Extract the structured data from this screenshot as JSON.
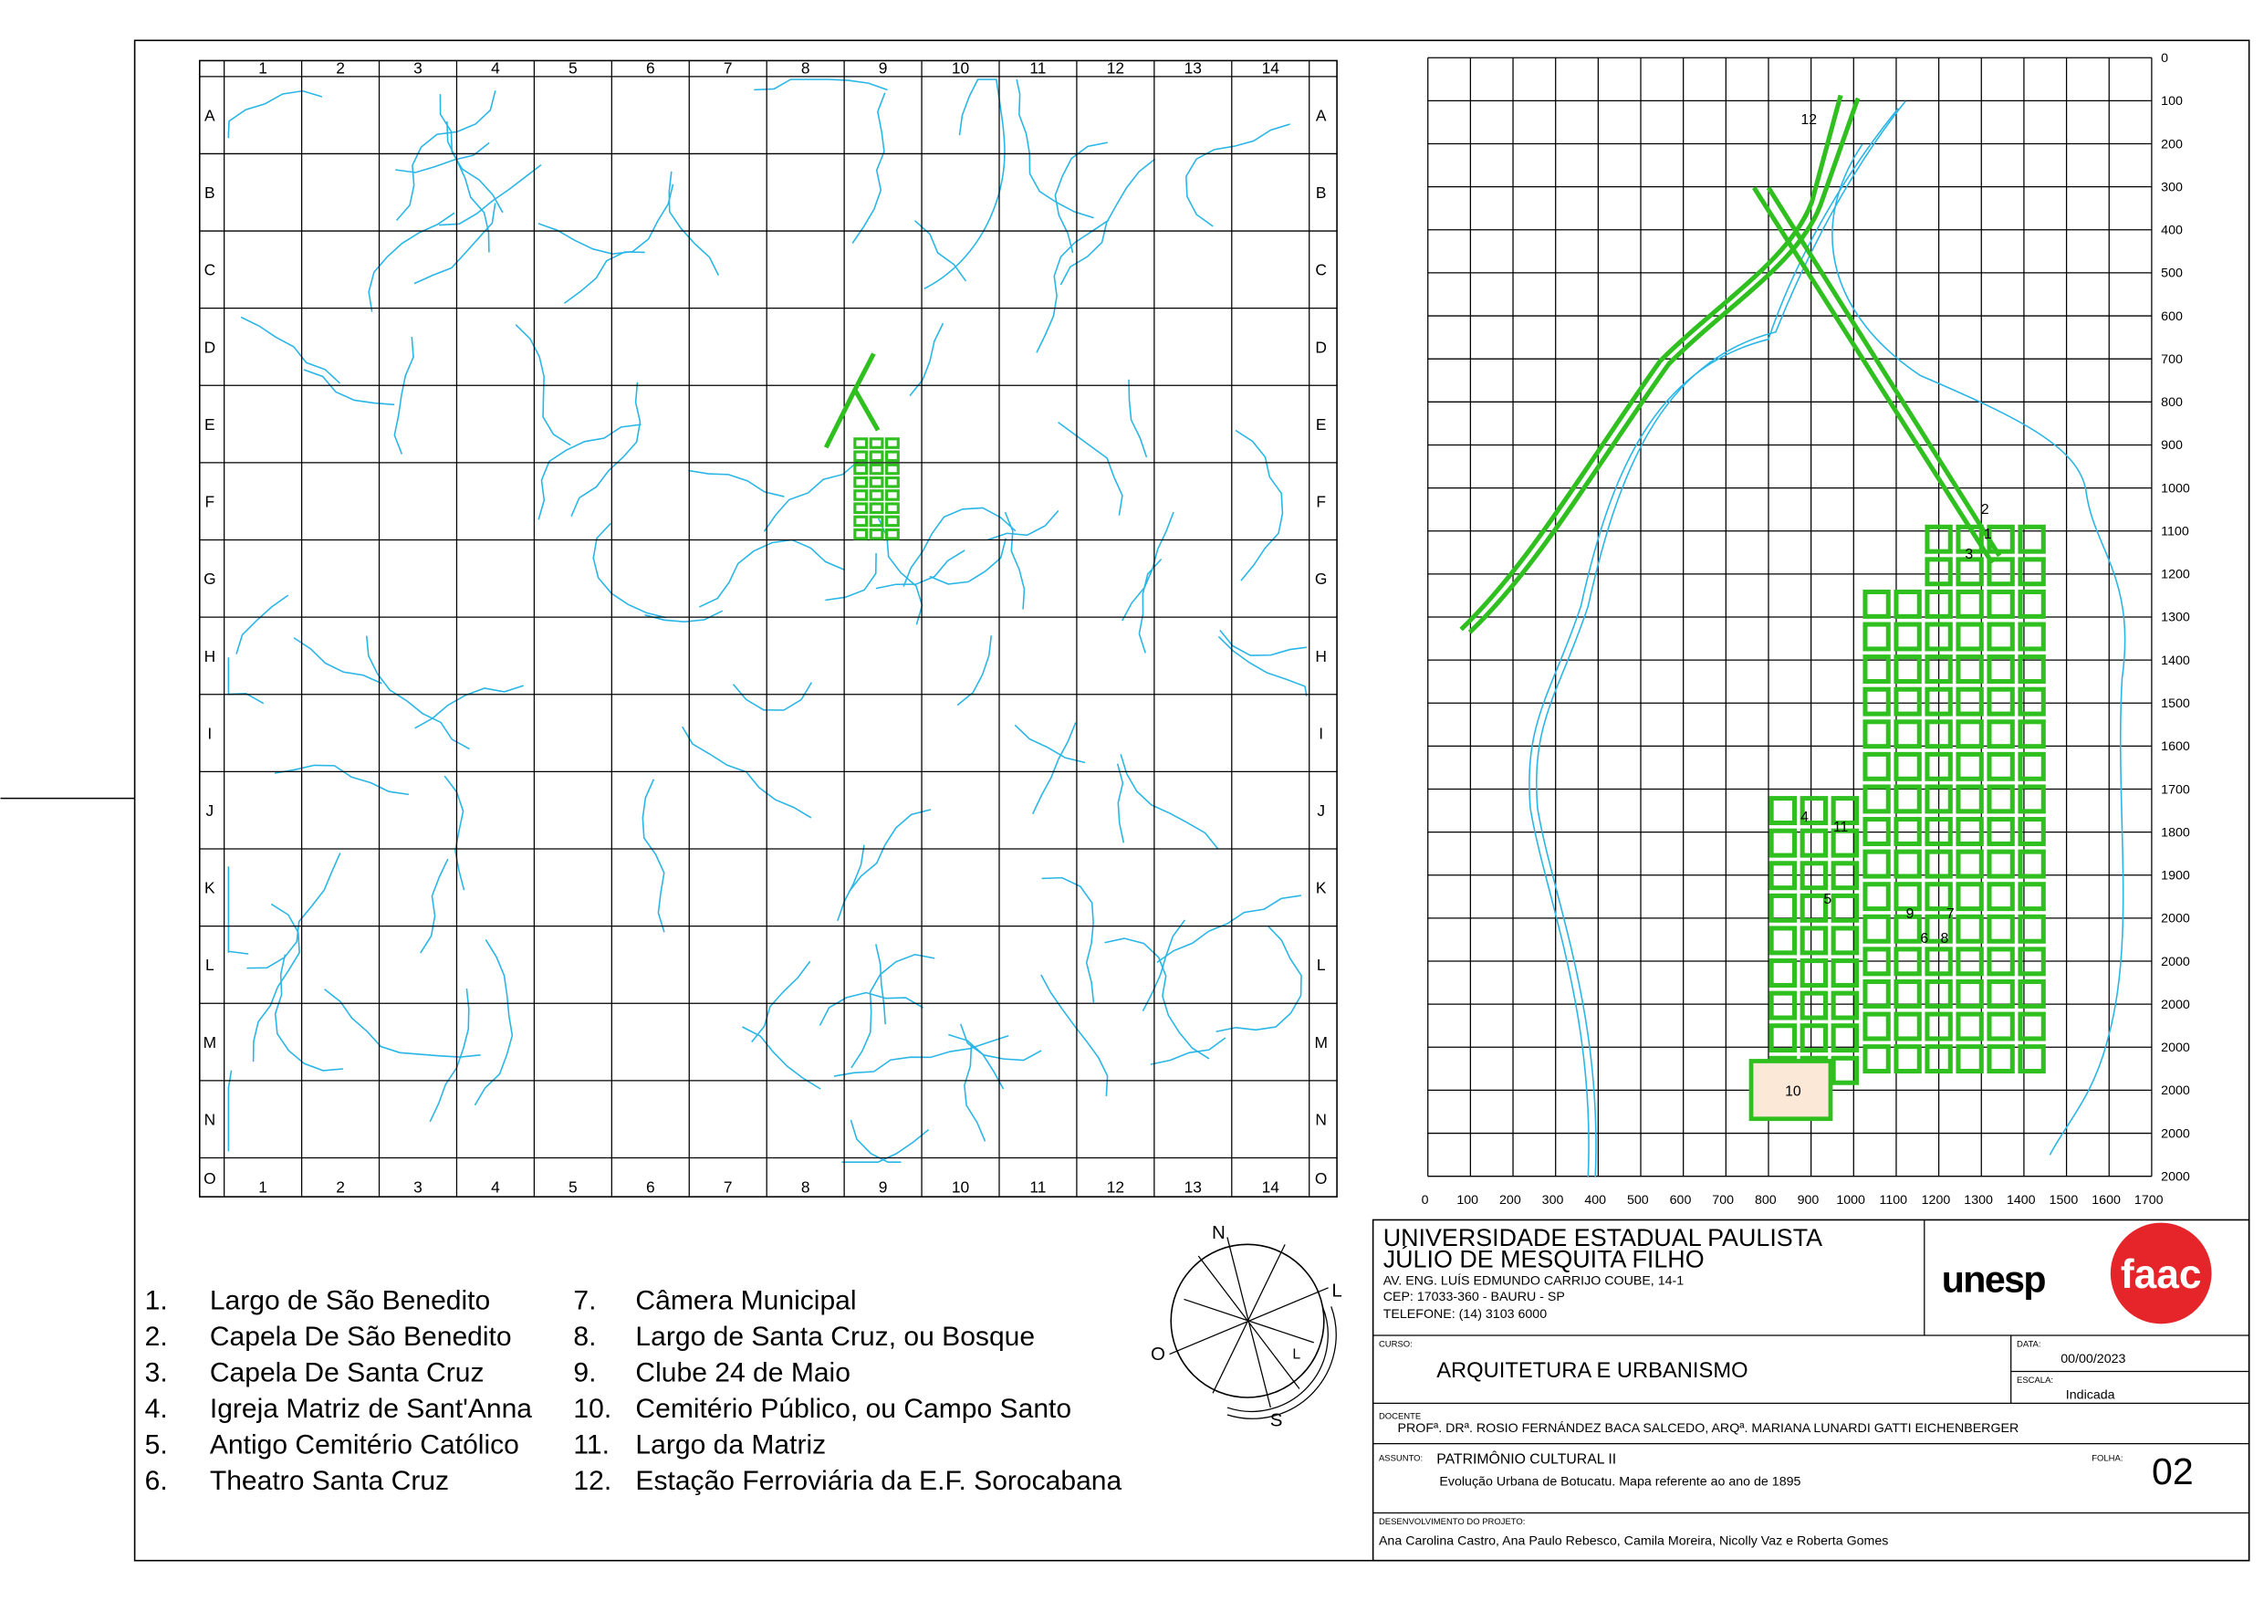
{
  "map_left": {
    "columns": [
      "1",
      "2",
      "3",
      "4",
      "5",
      "6",
      "7",
      "8",
      "9",
      "10",
      "11",
      "12",
      "13",
      "14"
    ],
    "rows": [
      "A",
      "B",
      "C",
      "D",
      "E",
      "F",
      "G",
      "H",
      "I",
      "J",
      "K",
      "L",
      "M",
      "N",
      "O"
    ]
  },
  "map_right": {
    "x_labels": [
      0,
      100,
      200,
      300,
      400,
      500,
      600,
      700,
      800,
      900,
      1000,
      1100,
      1200,
      1300,
      1400,
      1500,
      1600,
      1700
    ],
    "y_labels": [
      0,
      100,
      200,
      300,
      400,
      500,
      600,
      700,
      800,
      900,
      1000,
      1100,
      1200,
      1300,
      1400,
      1500,
      1600,
      1700,
      1800,
      1900,
      2000,
      2000,
      2000,
      2000,
      2000,
      2000,
      2000
    ],
    "markers": [
      "12",
      "2",
      "1",
      "3",
      "4",
      "11",
      "5",
      "9",
      "7",
      "6",
      "8",
      "10"
    ]
  },
  "compass": {
    "north": "N",
    "west": "O",
    "east": "L",
    "south": "S",
    "east_inner": "L"
  },
  "legend": [
    {
      "number": "1.",
      "name": "Largo de São Benedito"
    },
    {
      "number": "2.",
      "name": "Capela De São Benedito"
    },
    {
      "number": "3.",
      "name": "Capela De Santa Cruz"
    },
    {
      "number": "4.",
      "name": "Igreja Matriz de Sant'Anna"
    },
    {
      "number": "5.",
      "name": "Antigo Cemitério Católico"
    },
    {
      "number": "6.",
      "name": "Theatro Santa Cruz"
    },
    {
      "number": "7.",
      "name": "Câmera Municipal"
    },
    {
      "number": "8.",
      "name": "Largo de Santa Cruz, ou Bosque"
    },
    {
      "number": "9.",
      "name": "Clube 24 de Maio"
    },
    {
      "number": "10.",
      "name": "Cemitério Público, ou Campo Santo"
    },
    {
      "number": "11.",
      "name": "Largo da Matriz"
    },
    {
      "number": "12.",
      "name": "Estação Ferroviária da E.F. Sorocabana"
    }
  ],
  "title_block": {
    "university": "UNIVERSIDADE ESTADUAL PAULISTA",
    "university_sub": "JÚLIO DE MESQUITA FILHO",
    "address": "AV. ENG. LUÍS EDMUNDO CARRIJO COUBE, 14-1",
    "cep": "CEP: 17033-360 - BAURU - SP",
    "phone": "TELEFONE: (14) 3103 6000",
    "logo_unesp": "unesp",
    "logo_faac": "faac",
    "course_label": "CURSO:",
    "course": "ARQUITETURA E URBANISMO",
    "date_label": "DATA:",
    "date": "00/00/2023",
    "scale_label": "ESCALA:",
    "scale": "Indicada",
    "teacher_label": "DOCENTE",
    "teacher": "PROFª. DRª. ROSIO FERNÁNDEZ BACA SALCEDO, ARQª. MARIANA LUNARDI GATTI EICHENBERGER",
    "subject_label": "ASSUNTO:",
    "subject": "PATRIMÔNIO CULTURAL II",
    "subject_detail": "Evolução Urbana de Botucatu. Mapa referente ao ano de 1895",
    "sheet_label": "FOLHA:",
    "sheet": "02",
    "authors_label": "DESENVOLVIMENTO DO PROJETO:",
    "authors": "Ana Carolina Castro, Ana Paulo Rebesco, Camila Moreira, Nicolly Vaz e Roberta Gomes"
  }
}
